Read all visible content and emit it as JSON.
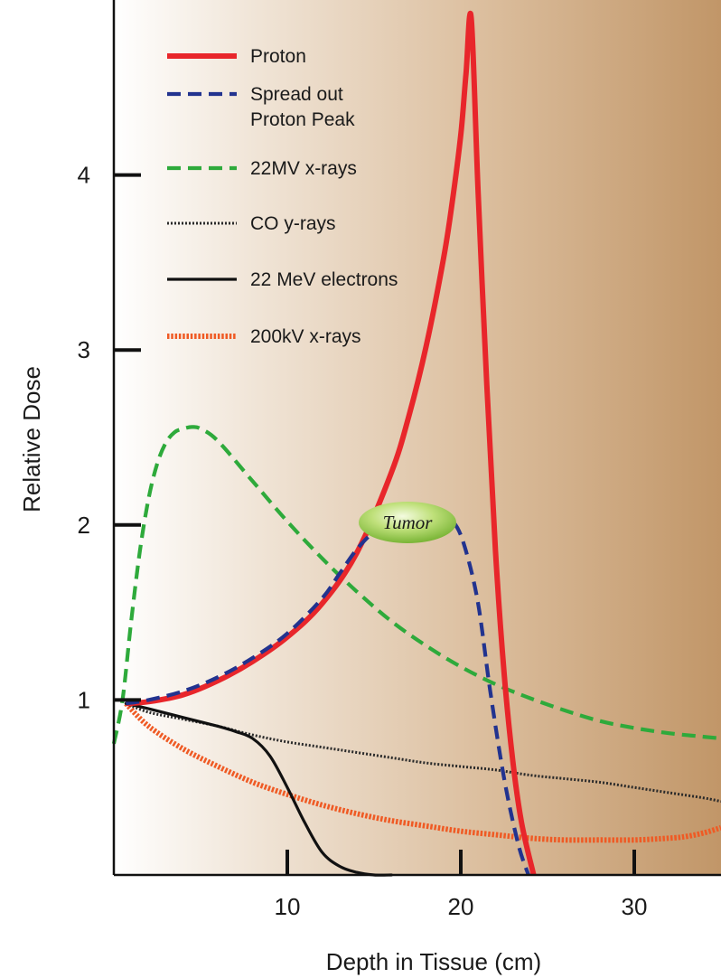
{
  "chart_data": {
    "type": "line",
    "xlabel": "Depth in Tissue (cm)",
    "ylabel": "Relative Dose",
    "xlim": [
      0,
      35
    ],
    "ylim": [
      0,
      5
    ],
    "x_ticks": [
      10,
      20,
      30
    ],
    "y_ticks": [
      1,
      2,
      3,
      4
    ],
    "grid": false,
    "legend_position": "top-left",
    "background": "gradient from white (left) to tan (right)",
    "annotations": [
      {
        "text": "Tumor",
        "x": 17.1,
        "y": 2.04
      }
    ],
    "series": [
      {
        "name": "Proton",
        "color": "#e8262b",
        "style": "solid",
        "x": [
          0.7,
          2,
          4,
          6,
          8,
          10,
          12,
          14,
          16,
          17,
          18,
          19,
          19.5,
          20,
          20.3,
          20.6,
          21,
          21.5,
          22,
          22.5,
          23,
          23.5,
          24.2
        ],
        "y": [
          0.98,
          0.99,
          1.03,
          1.11,
          1.22,
          1.36,
          1.55,
          1.84,
          2.3,
          2.62,
          3.02,
          3.52,
          3.84,
          4.23,
          4.58,
          4.9,
          3.9,
          2.8,
          1.85,
          1.15,
          0.65,
          0.3,
          0.0
        ]
      },
      {
        "name": "Spread out Proton Peak",
        "color": "#22338f",
        "style": "dashed",
        "x": [
          0.7,
          2,
          4,
          6,
          8,
          10,
          12,
          13,
          14,
          15,
          16,
          17,
          18,
          19,
          19.7,
          20.3,
          21,
          21.7,
          22.5,
          23.3,
          23.9
        ],
        "y": [
          0.98,
          1.0,
          1.05,
          1.13,
          1.24,
          1.38,
          1.58,
          1.72,
          1.86,
          1.96,
          2.0,
          2.01,
          2.02,
          2.03,
          2.0,
          1.85,
          1.55,
          1.05,
          0.55,
          0.18,
          0.0
        ]
      },
      {
        "name": "22MV x-rays",
        "color": "#2eaa3b",
        "style": "dashed",
        "x": [
          0,
          0.5,
          1,
          1.5,
          2,
          2.5,
          3,
          3.5,
          4,
          4.5,
          5,
          6,
          8,
          10,
          12,
          14,
          16,
          18,
          20,
          22,
          24,
          26,
          28,
          30,
          32,
          34,
          35
        ],
        "y": [
          0.75,
          1.0,
          1.45,
          1.85,
          2.15,
          2.35,
          2.47,
          2.53,
          2.55,
          2.56,
          2.55,
          2.48,
          2.25,
          2.02,
          1.81,
          1.62,
          1.45,
          1.31,
          1.19,
          1.09,
          1.01,
          0.94,
          0.88,
          0.84,
          0.81,
          0.79,
          0.78
        ]
      },
      {
        "name": "CO y-rays",
        "color": "#2a2a2a",
        "style": "dotted",
        "x": [
          0.7,
          2,
          4,
          6,
          8,
          10,
          12,
          14,
          16,
          18,
          20,
          22,
          24,
          26,
          28,
          30,
          32,
          34,
          35
        ],
        "y": [
          0.98,
          0.93,
          0.89,
          0.85,
          0.8,
          0.76,
          0.73,
          0.7,
          0.67,
          0.64,
          0.62,
          0.6,
          0.57,
          0.55,
          0.53,
          0.5,
          0.47,
          0.44,
          0.42
        ]
      },
      {
        "name": "22 MeV electrons",
        "color": "#111111",
        "style": "solid",
        "x": [
          0.7,
          2,
          4,
          6,
          7,
          8,
          9,
          10,
          11,
          12,
          13,
          14,
          15,
          16
        ],
        "y": [
          0.98,
          0.95,
          0.9,
          0.85,
          0.82,
          0.78,
          0.68,
          0.5,
          0.3,
          0.13,
          0.05,
          0.015,
          0.0,
          0.0
        ]
      },
      {
        "name": "200kV x-rays",
        "color": "#ef5a24",
        "style": "dotted",
        "x": [
          0.7,
          2,
          4,
          6,
          8,
          10,
          12,
          14,
          16,
          18,
          20,
          22,
          24,
          26,
          28,
          30,
          32,
          33,
          34,
          35
        ],
        "y": [
          0.98,
          0.85,
          0.72,
          0.62,
          0.53,
          0.46,
          0.4,
          0.35,
          0.31,
          0.28,
          0.25,
          0.23,
          0.21,
          0.2,
          0.2,
          0.2,
          0.21,
          0.22,
          0.24,
          0.27
        ]
      }
    ]
  }
}
